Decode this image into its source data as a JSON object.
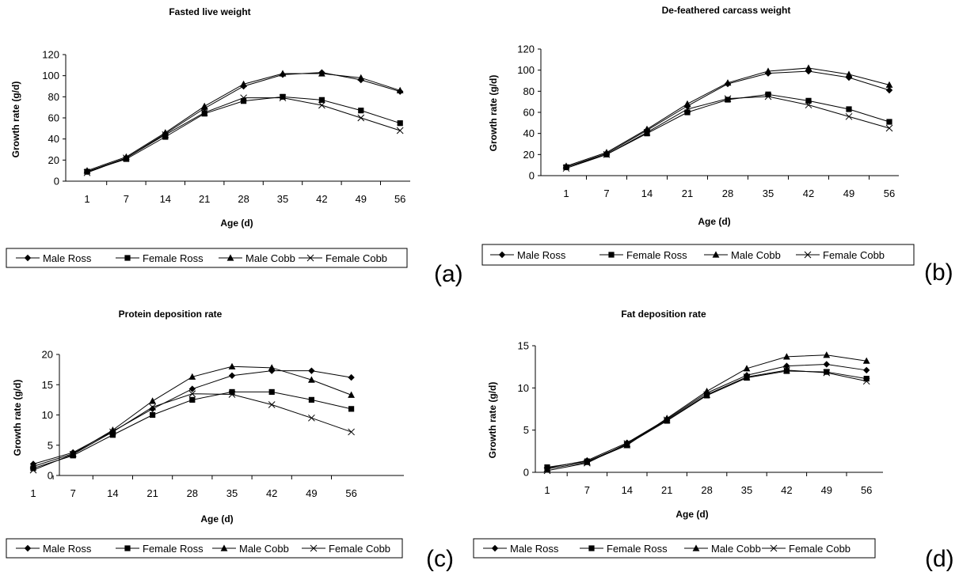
{
  "chart_data": [
    {
      "type": "line",
      "title": "Fasted live weight",
      "xlabel": "Age (d)",
      "ylabel": "Growth rate (g/d)",
      "categories": [
        "1",
        "7",
        "14",
        "21",
        "28",
        "35",
        "42",
        "49",
        "56"
      ],
      "ylim": [
        0,
        120
      ],
      "yticks": [
        "0",
        "20",
        "40",
        "60",
        "80",
        "100",
        "120"
      ],
      "grid": false,
      "legend_position": "bottom",
      "panel_label": "(a)",
      "series": [
        {
          "name": "Male Ross",
          "marker": "diamond",
          "values": [
            9,
            22,
            45,
            69,
            90,
            101,
            103,
            96,
            85
          ]
        },
        {
          "name": "Female Ross",
          "marker": "square",
          "values": [
            9,
            21,
            42,
            64,
            76,
            80,
            77,
            67,
            55
          ]
        },
        {
          "name": "Male Cobb",
          "marker": "triangle",
          "values": [
            10,
            23,
            46,
            71,
            92,
            102,
            102,
            98,
            86
          ]
        },
        {
          "name": "Female Cobb",
          "marker": "cross",
          "values": [
            8,
            22,
            44,
            65,
            79,
            79,
            72,
            60,
            48
          ]
        }
      ]
    },
    {
      "type": "line",
      "title": "De-feathered carcass weight",
      "xlabel": "Age (d)",
      "ylabel": "Growth rate (g/d)",
      "categories": [
        "1",
        "7",
        "14",
        "21",
        "28",
        "35",
        "42",
        "49",
        "56"
      ],
      "ylim": [
        0,
        120
      ],
      "yticks": [
        "0",
        "20",
        "40",
        "60",
        "80",
        "100",
        "120"
      ],
      "grid": false,
      "legend_position": "bottom",
      "panel_label": "(b)",
      "series": [
        {
          "name": "Male Ross",
          "marker": "diamond",
          "values": [
            8,
            21,
            43,
            66,
            87,
            97,
            99,
            93,
            81
          ]
        },
        {
          "name": "Female Ross",
          "marker": "square",
          "values": [
            8,
            20,
            40,
            60,
            72,
            77,
            71,
            63,
            51
          ]
        },
        {
          "name": "Male Cobb",
          "marker": "triangle",
          "values": [
            9,
            22,
            44,
            68,
            88,
            99,
            102,
            96,
            86
          ]
        },
        {
          "name": "Female Cobb",
          "marker": "cross",
          "values": [
            7,
            20,
            41,
            63,
            73,
            75,
            67,
            56,
            45
          ]
        }
      ]
    },
    {
      "type": "line",
      "title": "Protein deposition rate",
      "xlabel": "Age (d)",
      "ylabel": "Growth rate (g/d)",
      "categories": [
        "1",
        "7",
        "14",
        "21",
        "28",
        "35",
        "42",
        "49",
        "56"
      ],
      "ylim": [
        0,
        20
      ],
      "yticks": [
        "0",
        "5",
        "10",
        "15",
        "20"
      ],
      "grid": false,
      "legend_position": "bottom",
      "panel_label": "(c)",
      "series": [
        {
          "name": "Male Ross",
          "marker": "diamond",
          "values": [
            1.9,
            3.8,
            7.3,
            11.0,
            14.3,
            16.5,
            17.3,
            17.3,
            16.2
          ]
        },
        {
          "name": "Female Ross",
          "marker": "square",
          "values": [
            1.2,
            3.3,
            6.7,
            10.0,
            12.5,
            13.8,
            13.8,
            12.5,
            11.0
          ]
        },
        {
          "name": "Male Cobb",
          "marker": "triangle",
          "values": [
            1.5,
            3.6,
            7.5,
            12.3,
            16.3,
            18.0,
            17.8,
            15.8,
            13.3
          ]
        },
        {
          "name": "Female Cobb",
          "marker": "cross",
          "values": [
            0.9,
            3.5,
            7.2,
            11.3,
            13.5,
            13.4,
            11.7,
            9.5,
            7.2
          ]
        }
      ]
    },
    {
      "type": "line",
      "title": "Fat deposition rate",
      "xlabel": "Age (d)",
      "ylabel": "Growth rate (g/d)",
      "categories": [
        "1",
        "7",
        "14",
        "21",
        "28",
        "35",
        "42",
        "49",
        "56"
      ],
      "ylim": [
        0,
        15
      ],
      "yticks": [
        "0",
        "5",
        "10",
        "15"
      ],
      "grid": false,
      "legend_position": "bottom",
      "panel_label": "(d)",
      "series": [
        {
          "name": "Male Ross",
          "marker": "diamond",
          "values": [
            0.5,
            1.4,
            3.5,
            6.3,
            9.4,
            11.5,
            12.6,
            12.8,
            12.1
          ]
        },
        {
          "name": "Female Ross",
          "marker": "square",
          "values": [
            0.6,
            1.3,
            3.3,
            6.1,
            9.1,
            11.2,
            12.0,
            11.9,
            11.1
          ]
        },
        {
          "name": "Male Cobb",
          "marker": "triangle",
          "values": [
            0.4,
            1.2,
            3.2,
            6.4,
            9.6,
            12.3,
            13.7,
            13.9,
            13.2
          ]
        },
        {
          "name": "Female Cobb",
          "marker": "cross",
          "values": [
            0.2,
            1.1,
            3.4,
            6.2,
            9.2,
            11.3,
            12.1,
            11.8,
            10.8
          ]
        }
      ]
    }
  ]
}
